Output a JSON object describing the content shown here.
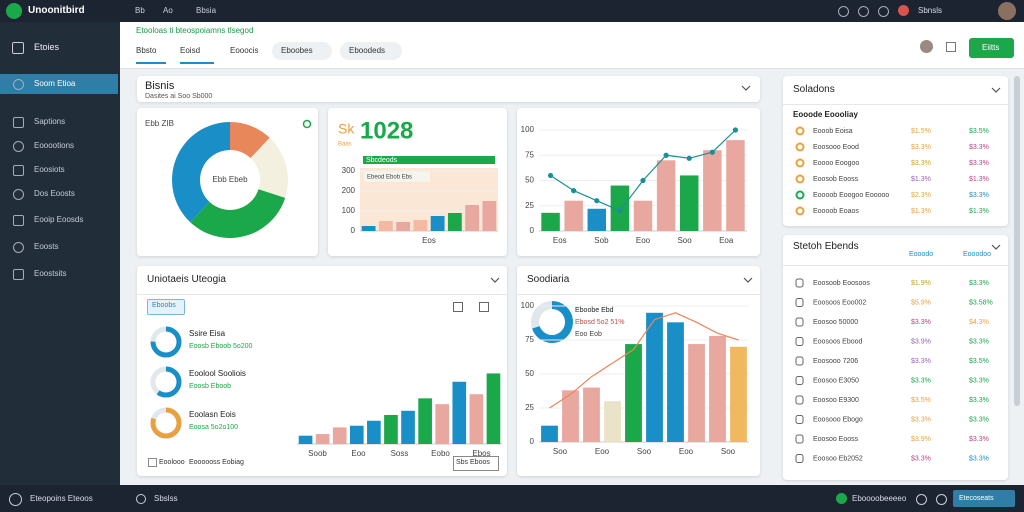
{
  "topbar": {
    "brand": "Unoonitbird",
    "links": [
      "Bb",
      "Ao",
      "Bbsia"
    ],
    "user": "Sbnsls"
  },
  "sidebar": {
    "title": "Etoies",
    "items": [
      "Soom Etioa",
      "Saptions",
      "Eooootions",
      "Eoosiots",
      "Dos Eoosts",
      "Eooip Eoosds",
      "Eoosts",
      "Eoostsits"
    ],
    "active": 0,
    "footer": "Eteopoins Eteoos",
    "status": "Sbslss"
  },
  "header": {
    "notice": "Etooloas ti bteospoiamns tlsegod",
    "tabs": [
      "Bbsto",
      "Eoisd",
      "Eooocis",
      "Eboobes",
      "Eboodeds"
    ],
    "button": "Eiitts"
  },
  "overview": {
    "title": "Bisnis",
    "subtitle": "Dasites ai Soo Sb000"
  },
  "donut": {
    "label": "Ebb ZIB",
    "center": "Ebb Ebeb",
    "values": [
      12,
      18,
      32,
      38
    ],
    "colors": [
      "#e8875a",
      "#f4f0e0",
      "#1aa84a",
      "#1a8fc7"
    ]
  },
  "kpi": {
    "prefix": "Sk",
    "value": "1028",
    "caption": "Baas",
    "bar_label": "Sbcdeods",
    "chip": "Ebeod Ebob Ebs",
    "chart": {
      "ylim": [
        0,
        300
      ],
      "yticks": [
        0,
        100,
        200,
        300
      ],
      "values": [
        25,
        50,
        45,
        55,
        75,
        90,
        130,
        150
      ],
      "colors": [
        "#1a8fc7",
        "#f4b9a0",
        "#e8a8a0",
        "#f4b9a0",
        "#1a8fc7",
        "#1aa84a",
        "#e8a8a0",
        "#e8a8a0"
      ],
      "xlabels": [
        "Eos"
      ]
    }
  },
  "trend": {
    "chart": {
      "ylim": [
        0,
        100
      ],
      "yticks": [
        0,
        25,
        50,
        75,
        100
      ],
      "values": [
        18,
        30,
        22,
        45,
        30,
        70,
        55,
        80,
        90
      ],
      "colors": [
        "#1aa84a",
        "#e8a8a0",
        "#1a8fc7",
        "#1aa84a",
        "#e8a8a0",
        "#e8a8a0",
        "#1aa84a",
        "#e8a8a0",
        "#e8a8a0"
      ],
      "line": [
        55,
        40,
        30,
        20,
        50,
        75,
        72,
        78,
        100
      ],
      "line_color": "#1a8f9a",
      "markers": true,
      "xlabels": [
        "Eos",
        "Sob",
        "Eoo",
        "Soo",
        "Eoa"
      ]
    }
  },
  "stats": {
    "title": "Uniotaeis Uteogia",
    "filter": "Eboobs",
    "footer_left": "Eoolooo",
    "footer_mid": "Eoooooss Eobiag",
    "footer_right": "Sbs Eboos",
    "gauges": [
      {
        "title": "Ssire Eisa",
        "detail": "Eoosb Eboob 5o200",
        "value": 75,
        "color": "#1a8fc7"
      },
      {
        "title": "Eoolool Sooliois",
        "detail": "Eoosb Eboob",
        "value": 60,
        "color": "#1a8fc7"
      },
      {
        "title": "Eoolasn Eois",
        "detail": "Eoosa 5o2o100",
        "value": 80,
        "color": "#e8a040"
      }
    ],
    "chart": {
      "ylim": [
        0,
        100
      ],
      "values": [
        10,
        12,
        20,
        22,
        28,
        35,
        40,
        55,
        48,
        75,
        60,
        85
      ],
      "colors": [
        "#1a8fc7",
        "#e8a8a0",
        "#e8a8a0",
        "#1a8fc7",
        "#1a8fc7",
        "#1aa84a",
        "#1a8fc7",
        "#1aa84a",
        "#e8a8a0",
        "#1a8fc7",
        "#e8a8a0",
        "#1aa84a"
      ],
      "xlabels": [
        "Soob",
        "Eoo",
        "Soss",
        "Eobo",
        "Ebos"
      ]
    }
  },
  "segments": {
    "title": "Soodiaria",
    "legend": "Eboobe Ebd",
    "legend_detail": "Ebosd 5o2 51%",
    "legend_detail2": "Eoo Eob",
    "donut": {
      "values": [
        70,
        30
      ],
      "colors": [
        "#1a8fc7",
        "#dfe6ec"
      ]
    },
    "chart": {
      "ylim": [
        0,
        100
      ],
      "yticks": [
        0,
        25,
        50,
        75,
        100
      ],
      "values": [
        12,
        38,
        40,
        30,
        72,
        95,
        88,
        72,
        78,
        70
      ],
      "colors": [
        "#1a8fc7",
        "#e8a8a0",
        "#e8a8a0",
        "#eae3c8",
        "#1aa84a",
        "#1a8fc7",
        "#1a8fc7",
        "#e8a8a0",
        "#e8a8a0",
        "#f0b860"
      ],
      "line": [
        25,
        35,
        48,
        58,
        68,
        90,
        95,
        88,
        80,
        75
      ],
      "line_color": "#e8875a",
      "xlabels": [
        "Soo",
        "Eoo",
        "Soo",
        "Eoo",
        "Soo"
      ]
    }
  },
  "sources": {
    "title": "Soladons",
    "subtitle": "Eooode Eoooliay",
    "rows": [
      {
        "name": "Eooob Eoisa",
        "a": "$1.5%",
        "b": "$3.5%",
        "color": "#e8a040"
      },
      {
        "name": "Eoosooo Eood",
        "a": "$3.3%",
        "b": "$3.3%",
        "color": "#e8a040"
      },
      {
        "name": "Eoooo Eoogoo",
        "a": "$3.3%",
        "b": "$3.3%",
        "color": "#e8a040"
      },
      {
        "name": "Eoosob Eooss",
        "a": "$1.3%",
        "b": "$1.3%",
        "color": "#e8a040"
      },
      {
        "name": "Eoooob Eoogoo Eooooo",
        "a": "$2.3%",
        "b": "$3.3%",
        "color": "#1aa84a"
      },
      {
        "name": "Eoooob Eoaos",
        "a": "$1.3%",
        "b": "$1.3%",
        "color": "#e8a040"
      }
    ]
  },
  "trends": {
    "title": "Stetoh Ebends",
    "columns": [
      "Eooodo",
      "Eooodoo"
    ],
    "rows": [
      {
        "name": "Eoosoob Eoosoos",
        "a": "$1.9%",
        "b": "$3.3%"
      },
      {
        "name": "Eoosoos Eoo002",
        "a": "$5.9%",
        "b": "$3.58%"
      },
      {
        "name": "Eoosoo 50000",
        "a": "$3.3%",
        "b": "$4.3%"
      },
      {
        "name": "Eoosoos Ebood",
        "a": "$3.9%",
        "b": "$3.3%"
      },
      {
        "name": "Eoosooo 7206",
        "a": "$3.3%",
        "b": "$3.5%"
      },
      {
        "name": "Eoosoo E3050",
        "a": "$3.3%",
        "b": "$3.3%"
      },
      {
        "name": "Eoosoo E9300",
        "a": "$3.5%",
        "b": "$3.3%"
      },
      {
        "name": "Eoosooo Ebogo",
        "a": "$3.3%",
        "b": "$3.3%"
      },
      {
        "name": "Eoosoo Eooss",
        "a": "$3.9%",
        "b": "$3.3%"
      },
      {
        "name": "Eoosoo Eb2052",
        "a": "$3.3%",
        "b": "$3.3%"
      }
    ]
  },
  "footer": {
    "info": "Eboooobeeeeo",
    "button": "Etecoseats"
  }
}
